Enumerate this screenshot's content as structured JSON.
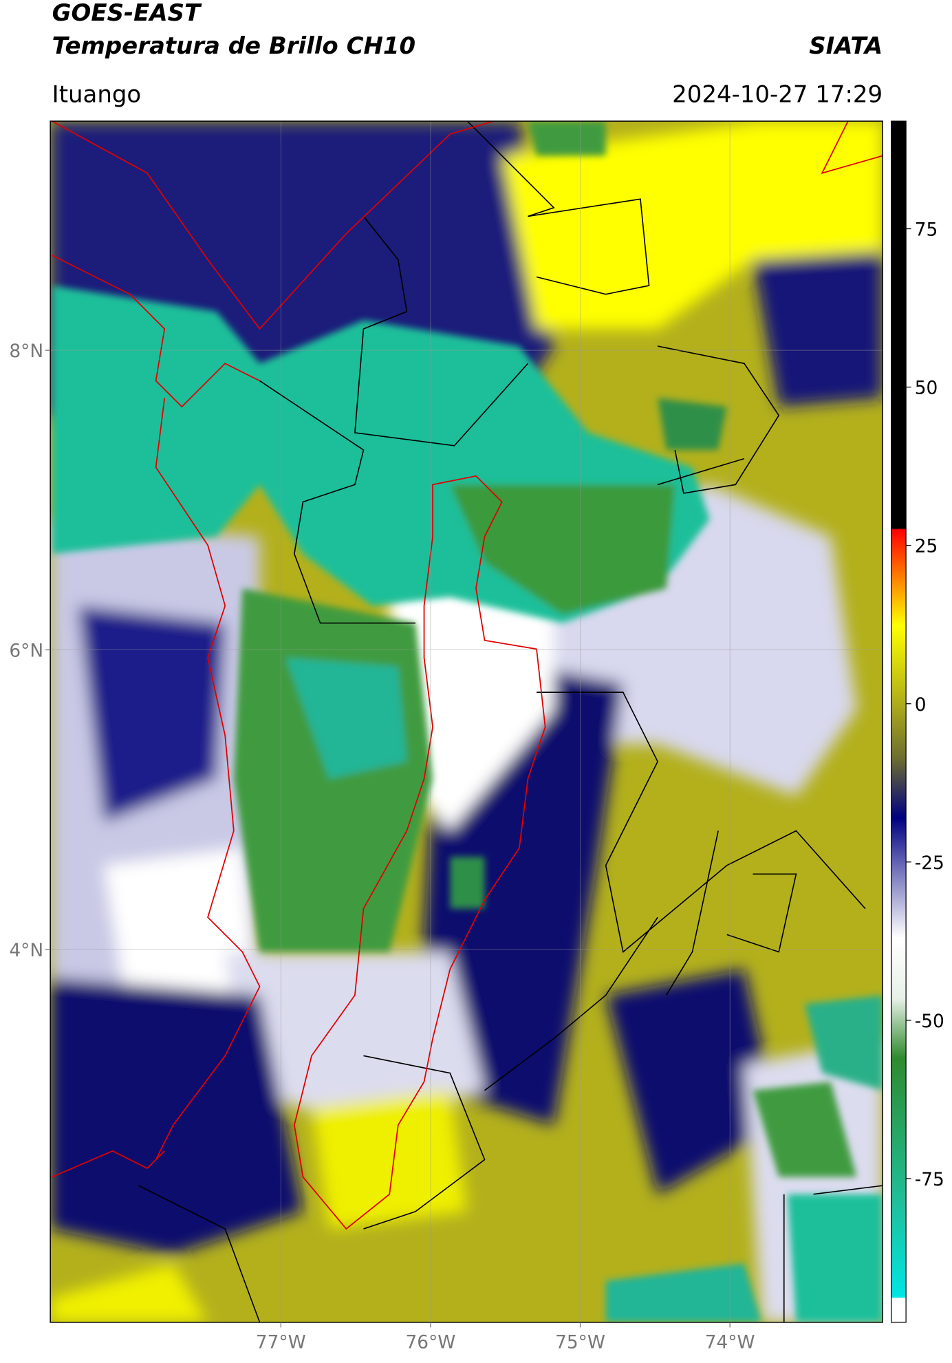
{
  "header": {
    "satellite": "GOES-EAST",
    "product": "Temperatura de Brillo CH10",
    "agency": "SIATA",
    "region": "Ituango",
    "timestamp": "2024-10-27 17:29"
  },
  "map": {
    "xlim": [
      -78.54,
      -72.98
    ],
    "ylim": [
      1.51,
      9.53
    ],
    "xticks": [
      {
        "value": -77,
        "label": "77°W"
      },
      {
        "value": -76,
        "label": "76°W"
      },
      {
        "value": -75,
        "label": "75°W"
      },
      {
        "value": -74,
        "label": "74°W"
      }
    ],
    "yticks": [
      {
        "value": 8,
        "label": "8°N"
      },
      {
        "value": 6,
        "label": "6°N"
      },
      {
        "value": 4,
        "label": "4°N"
      }
    ],
    "grid": true
  },
  "colorbar": {
    "lim": [
      -97.7,
      92
    ],
    "ticks": [
      75,
      50,
      25,
      0,
      -25,
      -50,
      -75
    ]
  }
}
